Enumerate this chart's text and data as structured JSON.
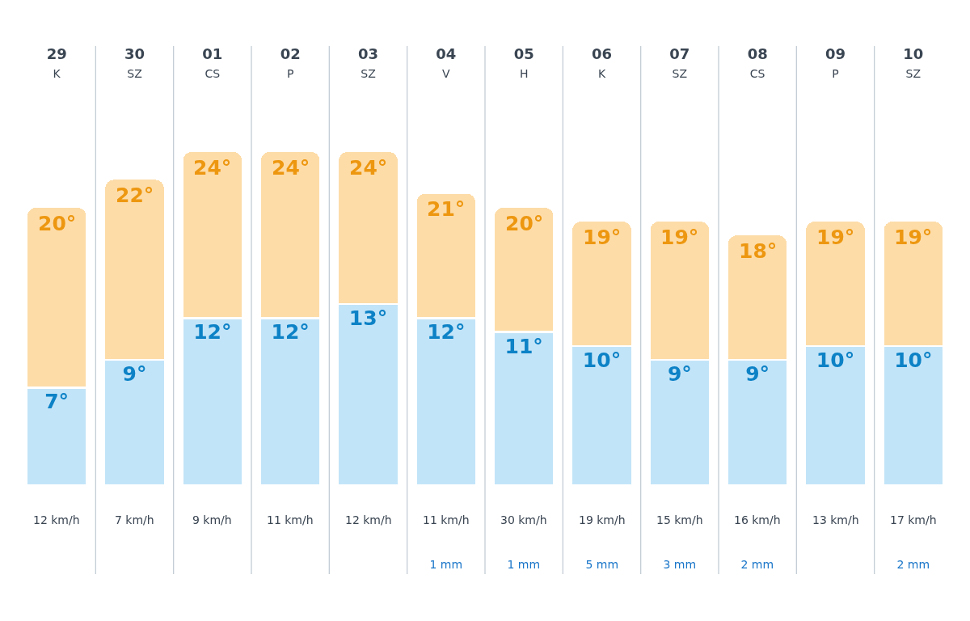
{
  "chart_data": {
    "type": "bar",
    "stacked": true,
    "categories": [
      "29\nK",
      "30\nSZ",
      "01\nCS",
      "02\nP",
      "03\nSZ",
      "04\nV",
      "05\nH",
      "06\nK",
      "07\nSZ",
      "08\nCS",
      "09\nP",
      "10\nSZ"
    ],
    "series": [
      {
        "color": "#c2e4f8",
        "values": [
          7,
          9,
          12,
          12,
          13,
          12,
          11,
          10,
          9,
          9,
          10,
          10
        ],
        "value_labels": [
          "7°",
          "9°",
          "12°",
          "12°",
          "13°",
          "12°",
          "11°",
          "10°",
          "9°",
          "9°",
          "10°",
          "10°"
        ]
      },
      {
        "color": "#fddca8",
        "values": [
          13,
          13,
          12,
          12,
          11,
          9,
          9,
          9,
          10,
          9,
          9,
          9
        ]
      }
    ],
    "totals": [
      "20°",
      "22°",
      "24°",
      "24°",
      "24°",
      "21°",
      "20°",
      "19°",
      "19°",
      "18°",
      "19°",
      "19°"
    ],
    "tick_labels": "x",
    "grid": "x",
    "annotations": [
      "12 km/h",
      "7 km/h",
      "9 km/h",
      "11 km/h",
      "12 km/h",
      "11 km/h\n1 mm",
      "30 km/h\n1 mm",
      "19 km/h\n5 mm",
      "15 km/h\n3 mm",
      "16 km/h\n2 mm",
      "13 km/h",
      "17 km/h\n2 mm"
    ]
  }
}
